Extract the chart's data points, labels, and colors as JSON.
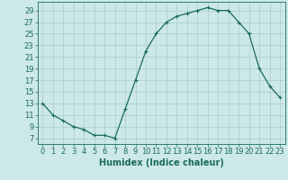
{
  "x": [
    0,
    1,
    2,
    3,
    4,
    5,
    6,
    7,
    8,
    9,
    10,
    11,
    12,
    13,
    14,
    15,
    16,
    17,
    18,
    19,
    20,
    21,
    22,
    23
  ],
  "y": [
    13,
    11,
    10,
    9,
    8.5,
    7.5,
    7.5,
    7,
    12,
    17,
    22,
    25,
    27,
    28,
    28.5,
    29,
    29.5,
    29,
    29,
    27,
    25,
    19,
    16,
    14
  ],
  "line_color": "#1a6b5a",
  "marker": "+",
  "marker_size": 3,
  "marker_lw": 0.8,
  "line_width": 0.9,
  "bg_color": "#cce8e8",
  "grid_color": "#aacccc",
  "xlabel": "Humidex (Indice chaleur)",
  "xlabel_fontsize": 7,
  "xlabel_color": "#1a6b5a",
  "yticks": [
    7,
    9,
    11,
    13,
    15,
    17,
    19,
    21,
    23,
    25,
    27,
    29
  ],
  "xticks": [
    0,
    1,
    2,
    3,
    4,
    5,
    6,
    7,
    8,
    9,
    10,
    11,
    12,
    13,
    14,
    15,
    16,
    17,
    18,
    19,
    20,
    21,
    22,
    23
  ],
  "ylim": [
    6.0,
    30.5
  ],
  "xlim": [
    -0.5,
    23.5
  ],
  "tick_fontsize": 6,
  "tick_color": "#1a6b5a"
}
